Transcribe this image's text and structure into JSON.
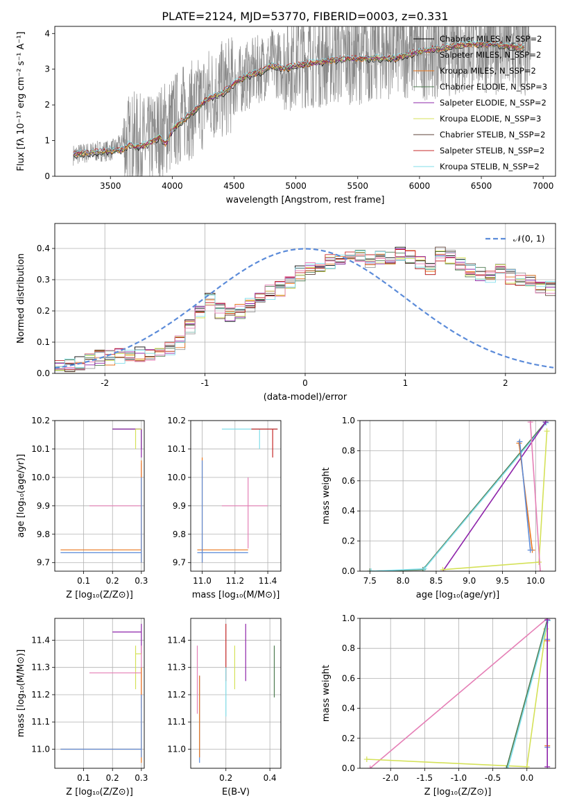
{
  "figure_title": "PLATE=2124, MJD=53770, FIBERID=0003, z=0.331",
  "colors": {
    "Chabrier MILES": "#000000",
    "Salpeter MILES": "#999999",
    "Kroupa MILES": "#e8761e",
    "Chabrier ELODIE": "#4c7a4f",
    "Salpeter ELODIE": "#8e24aa",
    "Kroupa ELODIE": "#d4e157",
    "Chabrier STELIB": "#5d4037",
    "Salpeter STELIB": "#c62828",
    "Kroupa STELIB": "#80deea",
    "normal": "#5b8bd9",
    "pink": "#e57fb6"
  },
  "chart_data": [
    {
      "id": "spectrum",
      "type": "line",
      "title": "",
      "xlabel": "wavelength [Angstrom, rest frame]",
      "ylabel": "Flux [fλ 10⁻¹⁷ erg cm⁻² s⁻¹ A⁻¹]",
      "xlim": [
        3050,
        7100
      ],
      "ylim": [
        0,
        4.2
      ],
      "xticks": [
        3500,
        4000,
        4500,
        5000,
        5500,
        6000,
        6500,
        7000
      ],
      "yticks": [
        0,
        1,
        2,
        3,
        4
      ],
      "legend_position": "top-right",
      "legend": [
        {
          "label": "Chabrier MILES, N_SSP=2",
          "color": "#000000"
        },
        {
          "label": "Salpeter MILES, N_SSP=2",
          "color": "#999999"
        },
        {
          "label": "Kroupa MILES, N_SSP=2",
          "color": "#e8761e"
        },
        {
          "label": "Chabrier ELODIE, N_SSP=3",
          "color": "#4c7a4f"
        },
        {
          "label": "Salpeter ELODIE, N_SSP=2",
          "color": "#8e24aa"
        },
        {
          "label": "Kroupa ELODIE, N_SSP=3",
          "color": "#d4e157"
        },
        {
          "label": "Chabrier STELIB, N_SSP=2",
          "color": "#5d4037"
        },
        {
          "label": "Salpeter STELIB, N_SSP=2",
          "color": "#c62828"
        },
        {
          "label": "Kroupa STELIB, N_SSP=2",
          "color": "#80deea"
        }
      ],
      "data_envelope": {
        "x": [
          3200,
          3300,
          3400,
          3500,
          3600,
          3700,
          3800,
          3900,
          4000,
          4100,
          4200,
          4300,
          4400,
          4500,
          4600,
          4700,
          4800,
          4900,
          5000,
          5200,
          5400,
          5600,
          5800,
          6000,
          6200,
          6400,
          6600,
          6800,
          6900
        ],
        "y": [
          0.6,
          0.65,
          0.7,
          0.72,
          0.9,
          1.0,
          0.85,
          1.2,
          1.5,
          1.8,
          1.9,
          2.3,
          2.4,
          2.6,
          2.8,
          3.0,
          3.2,
          3.1,
          3.3,
          3.3,
          3.4,
          3.4,
          3.6,
          3.5,
          3.6,
          3.7,
          3.7,
          3.5,
          3.4
        ]
      },
      "model_curve": {
        "x": [
          3200,
          3300,
          3400,
          3500,
          3600,
          3650,
          3700,
          3800,
          3900,
          3950,
          4000,
          4100,
          4200,
          4300,
          4400,
          4500,
          4600,
          4700,
          4800,
          4900,
          5000,
          5200,
          5400,
          5600,
          5800,
          6000,
          6200,
          6400,
          6600,
          6800
        ],
        "y": [
          0.6,
          0.65,
          0.68,
          0.7,
          0.75,
          0.9,
          0.8,
          0.9,
          1.1,
          0.9,
          1.3,
          1.6,
          1.9,
          2.2,
          2.3,
          2.6,
          2.8,
          2.9,
          3.1,
          3.0,
          3.1,
          3.2,
          3.3,
          3.3,
          3.3,
          3.5,
          3.6,
          3.7,
          3.7,
          3.6
        ]
      }
    },
    {
      "id": "residuals",
      "type": "line",
      "title": "",
      "xlabel": "(data-model)/error",
      "ylabel": "Normed distribution",
      "xlim": [
        -2.5,
        2.5
      ],
      "ylim": [
        0,
        0.48
      ],
      "xticks": [
        -2,
        -1,
        0,
        1,
        2
      ],
      "yticks": [
        0.0,
        0.1,
        0.2,
        0.3,
        0.4
      ],
      "legend_position": "top-right",
      "legend": [
        {
          "label": "𝒩(0, 1)",
          "color": "#5b8bd9"
        }
      ],
      "hist_bin_width": 0.1,
      "hist_x_start": -2.5,
      "hist_values": [
        0.03,
        0.03,
        0.035,
        0.04,
        0.05,
        0.05,
        0.055,
        0.06,
        0.06,
        0.065,
        0.07,
        0.08,
        0.1,
        0.15,
        0.2,
        0.24,
        0.2,
        0.19,
        0.2,
        0.22,
        0.24,
        0.26,
        0.27,
        0.29,
        0.32,
        0.33,
        0.35,
        0.36,
        0.37,
        0.37,
        0.37,
        0.36,
        0.37,
        0.37,
        0.38,
        0.37,
        0.36,
        0.34,
        0.38,
        0.37,
        0.35,
        0.33,
        0.32,
        0.31,
        0.33,
        0.31,
        0.3,
        0.29,
        0.28,
        0.27,
        0.25,
        0.24,
        0.23,
        0.21,
        0.2,
        0.18,
        0.16,
        0.15,
        0.13,
        0.12,
        0.11,
        0.1,
        0.09,
        0.09,
        0.08,
        0.08,
        0.07,
        0.07,
        0.07,
        0.06
      ]
    },
    {
      "id": "age-vs-Z",
      "type": "scatter",
      "xlabel": "Z [log₁₀(Z/Z⊙)]",
      "ylabel": "age  [log₁₀(age/yr)]",
      "xlim": [
        0.0,
        0.31
      ],
      "ylim": [
        9.67,
        10.2
      ],
      "xticks": [
        0.1,
        0.2,
        0.3
      ],
      "yticks": [
        9.7,
        9.8,
        9.9,
        10.0,
        10.1,
        10.2
      ],
      "points": [
        {
          "x": 0.3,
          "y": 10.17,
          "xerr": [
            0.2,
            0.3
          ],
          "yerr": [
            10.1,
            10.17
          ],
          "color": "#4c7a4f"
        },
        {
          "x": 0.3,
          "y": 10.17,
          "xerr": [
            0.2,
            0.3
          ],
          "yerr": [
            10.07,
            10.17
          ],
          "color": "#8e24aa"
        },
        {
          "x": 0.28,
          "y": 10.17,
          "xerr": [
            0.28,
            0.3
          ],
          "yerr": [
            10.1,
            10.17
          ],
          "color": "#d4e157"
        },
        {
          "x": 0.3,
          "y": 9.9,
          "xerr": [
            0.12,
            0.3
          ],
          "yerr": [
            9.75,
            10.05
          ],
          "color": "#e57fb6"
        },
        {
          "x": 0.3,
          "y": 9.745,
          "xerr": [
            0.02,
            0.3
          ],
          "yerr": [
            9.7,
            10.06
          ],
          "color": "#e8761e"
        },
        {
          "x": 0.3,
          "y": 9.735,
          "xerr": [
            0.02,
            0.3
          ],
          "yerr": [
            9.7,
            10.0
          ],
          "color": "#5b8bd9"
        }
      ]
    },
    {
      "id": "age-vs-mass",
      "type": "scatter",
      "xlabel": "mass [log₁₀(M/M⊙)]",
      "ylabel": "",
      "xlim": [
        10.93,
        11.48
      ],
      "ylim": [
        9.67,
        10.2
      ],
      "xticks": [
        11.0,
        11.2,
        11.4
      ],
      "yticks": [
        9.7,
        9.8,
        9.9,
        10.0,
        10.1,
        10.2
      ],
      "points": [
        {
          "x": 11.35,
          "y": 10.17,
          "xerr": [
            11.12,
            11.46
          ],
          "yerr": [
            10.1,
            10.17
          ],
          "color": "#80deea"
        },
        {
          "x": 11.43,
          "y": 10.17,
          "xerr": [
            11.3,
            11.46
          ],
          "yerr": [
            10.07,
            10.17
          ],
          "color": "#c62828"
        },
        {
          "x": 11.28,
          "y": 9.9,
          "xerr": [
            11.12,
            11.4
          ],
          "yerr": [
            9.75,
            10.0
          ],
          "color": "#e57fb6"
        },
        {
          "x": 11.0,
          "y": 9.745,
          "xerr": [
            10.97,
            11.28
          ],
          "yerr": [
            9.7,
            10.07
          ],
          "color": "#e8761e"
        },
        {
          "x": 11.0,
          "y": 9.735,
          "xerr": [
            10.97,
            11.28
          ],
          "yerr": [
            9.7,
            10.06
          ],
          "color": "#5b8bd9"
        }
      ]
    },
    {
      "id": "massweight-vs-age",
      "type": "line",
      "xlabel": "age  [log₁₀(age/yr)]",
      "ylabel": "mass weight",
      "xlim": [
        7.35,
        10.3
      ],
      "ylim": [
        0.0,
        1.0
      ],
      "xticks": [
        7.5,
        8.0,
        8.5,
        9.0,
        9.5,
        10.0
      ],
      "yticks": [
        0.0,
        0.2,
        0.4,
        0.6,
        0.8,
        1.0
      ],
      "series": [
        {
          "color": "#4c7a4f",
          "x": [
            7.5,
            8.3,
            10.15
          ],
          "y": [
            0.0,
            0.01,
            0.99
          ]
        },
        {
          "color": "#80deea",
          "x": [
            7.52,
            8.32,
            10.16
          ],
          "y": [
            0.0,
            0.015,
            0.985
          ]
        },
        {
          "color": "#8e24aa",
          "x": [
            8.6,
            10.15
          ],
          "y": [
            0.0,
            0.99
          ]
        },
        {
          "color": "#d4e157",
          "x": [
            8.6,
            10.05,
            10.17
          ],
          "y": [
            0.01,
            0.06,
            0.93
          ]
        },
        {
          "color": "#e8761e",
          "x": [
            9.75,
            9.95
          ],
          "y": [
            0.85,
            0.14
          ]
        },
        {
          "color": "#5b8bd9",
          "x": [
            9.76,
            9.92
          ],
          "y": [
            0.86,
            0.14
          ]
        },
        {
          "color": "#e57fb6",
          "x": [
            9.92,
            10.07
          ],
          "y": [
            0.99,
            0.0
          ]
        }
      ]
    },
    {
      "id": "mass-vs-Z",
      "type": "scatter",
      "xlabel": "Z [log₁₀(Z/Z⊙)]",
      "ylabel": "mass [log₁₀(M/M⊙)]",
      "xlim": [
        0.0,
        0.31
      ],
      "ylim": [
        10.93,
        11.48
      ],
      "xticks": [
        0.1,
        0.2,
        0.3
      ],
      "yticks": [
        11.0,
        11.1,
        11.2,
        11.3,
        11.4
      ],
      "points": [
        {
          "x": 0.3,
          "y": 11.43,
          "xerr": [
            0.2,
            0.3
          ],
          "yerr": [
            11.35,
            11.46
          ],
          "color": "#8e24aa"
        },
        {
          "x": 0.28,
          "y": 11.35,
          "xerr": [
            0.28,
            0.3
          ],
          "yerr": [
            11.22,
            11.38
          ],
          "color": "#d4e157"
        },
        {
          "x": 0.3,
          "y": 11.28,
          "xerr": [
            0.12,
            0.3
          ],
          "yerr": [
            11.15,
            11.38
          ],
          "color": "#e57fb6"
        },
        {
          "x": 0.3,
          "y": 11.0,
          "xerr": [
            0.02,
            0.3
          ],
          "yerr": [
            10.95,
            11.3
          ],
          "color": "#e8761e"
        },
        {
          "x": 0.3,
          "y": 11.0,
          "xerr": [
            0.02,
            0.3
          ],
          "yerr": [
            10.97,
            11.2
          ],
          "color": "#5b8bd9"
        }
      ]
    },
    {
      "id": "mass-vs-ebv",
      "type": "scatter",
      "xlabel": "E(B-V)",
      "ylabel": "",
      "xlim": [
        0.04,
        0.45
      ],
      "ylim": [
        10.93,
        11.48
      ],
      "xticks": [
        0.2,
        0.4
      ],
      "yticks": [
        11.0,
        11.1,
        11.2,
        11.3,
        11.4
      ],
      "points": [
        {
          "x": 0.07,
          "y": 11.25,
          "yerr": [
            11.13,
            11.38
          ],
          "color": "#e57fb6"
        },
        {
          "x": 0.08,
          "y": 11.1,
          "yerr": [
            10.95,
            11.27
          ],
          "color": "#5b8bd9"
        },
        {
          "x": 0.08,
          "y": 11.12,
          "yerr": [
            10.97,
            11.27
          ],
          "color": "#e8761e"
        },
        {
          "x": 0.2,
          "y": 11.35,
          "yerr": [
            11.25,
            11.46
          ],
          "color": "#c62828"
        },
        {
          "x": 0.2,
          "y": 11.2,
          "yerr": [
            11.12,
            11.3
          ],
          "color": "#80deea"
        },
        {
          "x": 0.24,
          "y": 11.3,
          "yerr": [
            11.22,
            11.38
          ],
          "color": "#d4e157"
        },
        {
          "x": 0.29,
          "y": 11.37,
          "yerr": [
            11.25,
            11.46
          ],
          "color": "#8e24aa"
        },
        {
          "x": 0.42,
          "y": 11.3,
          "yerr": [
            11.19,
            11.38
          ],
          "color": "#4c7a4f"
        }
      ]
    },
    {
      "id": "massweight-vs-Z",
      "type": "line",
      "xlabel": "Z [log₁₀(Z/Z⊙)]",
      "ylabel": "mass weight",
      "xlim": [
        -2.45,
        0.42
      ],
      "ylim": [
        0.0,
        1.0
      ],
      "xticks": [
        -2.0,
        -1.5,
        -1.0,
        -0.5,
        0.0
      ],
      "yticks": [
        0.0,
        0.2,
        0.4,
        0.6,
        0.8,
        1.0
      ],
      "series": [
        {
          "color": "#e57fb6",
          "x": [
            -2.3,
            0.3
          ],
          "y": [
            0.0,
            1.0
          ]
        },
        {
          "color": "#d4e157",
          "x": [
            -2.35,
            0.0,
            0.28
          ],
          "y": [
            0.06,
            0.01,
            0.93
          ]
        },
        {
          "color": "#4c7a4f",
          "x": [
            -0.3,
            0.3
          ],
          "y": [
            0.0,
            0.99
          ]
        },
        {
          "color": "#80deea",
          "x": [
            -0.28,
            0.31
          ],
          "y": [
            0.0,
            0.985
          ]
        },
        {
          "color": "#e8761e",
          "x": [
            0.3,
            0.3
          ],
          "y": [
            0.15,
            0.85
          ]
        },
        {
          "color": "#5b8bd9",
          "x": [
            0.3,
            0.3
          ],
          "y": [
            0.14,
            0.86
          ]
        },
        {
          "color": "#8e24aa",
          "x": [
            0.3,
            0.3
          ],
          "y": [
            0.01,
            0.99
          ]
        }
      ]
    }
  ]
}
